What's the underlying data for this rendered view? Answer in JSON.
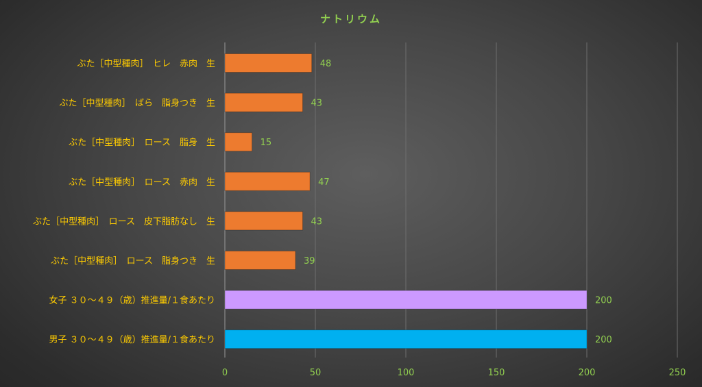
{
  "chart_data": {
    "type": "bar",
    "orientation": "horizontal",
    "title": "ナトリウム",
    "xlabel": "",
    "ylabel": "",
    "xlim": [
      0,
      250
    ],
    "x_ticks": [
      "0",
      "50",
      "100",
      "150",
      "200",
      "250"
    ],
    "grid": "vertical",
    "legend": "none",
    "categories": [
      "ぶた［中型種肉］　ヒレ　赤肉　生",
      "ぶた［中型種肉］　ばら　脂身つき　生",
      "ぶた［中型種肉］　ロース　脂身　生",
      "ぶた［中型種肉］　ロース　赤肉　生",
      "ぶた［中型種肉］　ロース　皮下脂肪なし　生",
      "ぶた［中型種肉］　ロース　脂身つき　生",
      "女子 ３０～４９（歳）推進量/１食あたり",
      "男子 ３０～４９（歳）推進量/１食あたり"
    ],
    "values": [
      48,
      43,
      15,
      47,
      43,
      39,
      200,
      200
    ],
    "value_labels": [
      "48",
      "43",
      "15",
      "47",
      "43",
      "39",
      "200",
      "200"
    ],
    "bar_colors": [
      "#ed7b2f",
      "#ed7b2f",
      "#ed7b2f",
      "#ed7b2f",
      "#ed7b2f",
      "#ed7b2f",
      "#cc99ff",
      "#00b0f0"
    ]
  },
  "colors": {
    "title": "#92d050",
    "category_label": "#ffcc00",
    "value_label": "#92d050",
    "tick_label": "#92d050",
    "gridline": "#6e6e6e",
    "axis_line": "#9a9a9a"
  }
}
